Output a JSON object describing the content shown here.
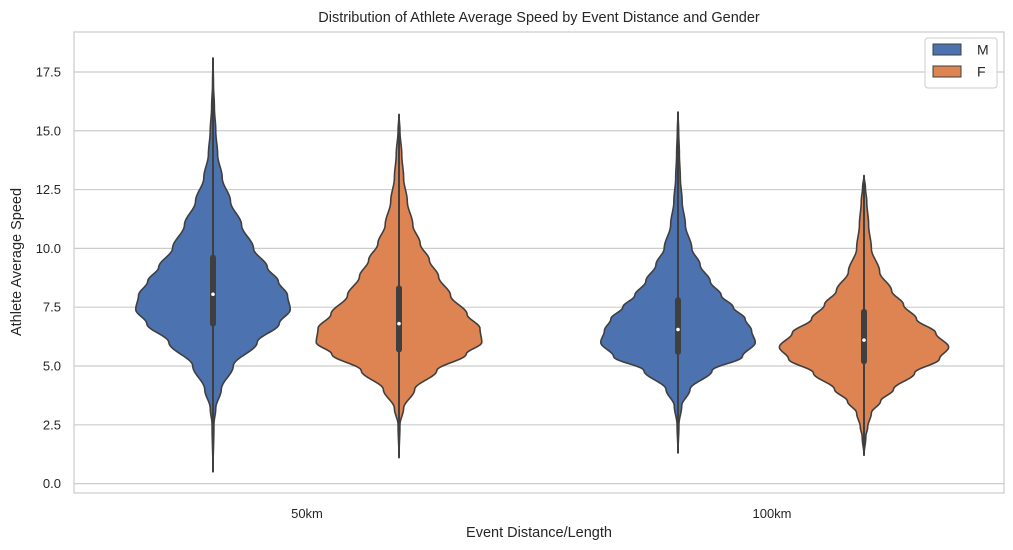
{
  "chart_data": {
    "type": "violin",
    "title": "Distribution of Athlete Average Speed by Event Distance and Gender",
    "xlabel": "Event Distance/Length",
    "ylabel": "Athlete Average Speed",
    "categories": [
      "50km",
      "100km"
    ],
    "ylim": [
      -0.4,
      19.2
    ],
    "yticks": [
      0.0,
      2.5,
      5.0,
      7.5,
      10.0,
      12.5,
      15.0,
      17.5
    ],
    "ytick_labels": [
      "0.0",
      "2.5",
      "5.0",
      "7.5",
      "10.0",
      "12.5",
      "15.0",
      "17.5"
    ],
    "grid": "horizontal",
    "legend": {
      "position": "top-right",
      "entries": [
        "M",
        "F"
      ]
    },
    "series": [
      {
        "name": "M",
        "color": "#4c72b0",
        "violins": [
          {
            "category": "50km",
            "min": 0.5,
            "q1": 6.8,
            "median": 8.05,
            "q3": 9.6,
            "max": 18.1,
            "profile": [
              [
                0.5,
                0.0
              ],
              [
                2.5,
                0.01
              ],
              [
                3.2,
                0.03
              ],
              [
                4.0,
                0.09
              ],
              [
                5.0,
                0.22
              ],
              [
                6.0,
                0.48
              ],
              [
                6.8,
                0.72
              ],
              [
                7.4,
                0.84
              ],
              [
                8.0,
                0.81
              ],
              [
                8.6,
                0.71
              ],
              [
                9.2,
                0.59
              ],
              [
                10.0,
                0.44
              ],
              [
                11.0,
                0.31
              ],
              [
                12.0,
                0.19
              ],
              [
                13.0,
                0.1
              ],
              [
                14.0,
                0.05
              ],
              [
                15.0,
                0.03
              ],
              [
                16.0,
                0.015
              ],
              [
                17.0,
                0.005
              ],
              [
                18.1,
                0.0
              ]
            ]
          },
          {
            "category": "100km",
            "min": 1.3,
            "q1": 5.6,
            "median": 6.55,
            "q3": 7.8,
            "max": 15.8,
            "profile": [
              [
                1.3,
                0.0
              ],
              [
                2.5,
                0.01
              ],
              [
                3.3,
                0.04
              ],
              [
                4.0,
                0.13
              ],
              [
                4.8,
                0.37
              ],
              [
                5.4,
                0.7
              ],
              [
                6.0,
                0.84
              ],
              [
                6.5,
                0.8
              ],
              [
                7.0,
                0.73
              ],
              [
                7.5,
                0.6
              ],
              [
                8.0,
                0.47
              ],
              [
                8.6,
                0.35
              ],
              [
                9.3,
                0.24
              ],
              [
                10.0,
                0.15
              ],
              [
                11.0,
                0.08
              ],
              [
                12.0,
                0.045
              ],
              [
                13.0,
                0.025
              ],
              [
                14.0,
                0.015
              ],
              [
                15.0,
                0.007
              ],
              [
                15.8,
                0.0
              ]
            ]
          }
        ]
      },
      {
        "name": "F",
        "color": "#dd8452",
        "violins": [
          {
            "category": "50km",
            "min": 1.1,
            "q1": 5.7,
            "median": 6.8,
            "q3": 8.3,
            "max": 15.7,
            "profile": [
              [
                1.1,
                0.0
              ],
              [
                2.5,
                0.01
              ],
              [
                3.2,
                0.05
              ],
              [
                4.0,
                0.17
              ],
              [
                4.8,
                0.41
              ],
              [
                5.5,
                0.73
              ],
              [
                6.0,
                0.9
              ],
              [
                6.6,
                0.88
              ],
              [
                7.2,
                0.74
              ],
              [
                8.0,
                0.56
              ],
              [
                8.8,
                0.43
              ],
              [
                9.5,
                0.33
              ],
              [
                10.2,
                0.23
              ],
              [
                11.0,
                0.15
              ],
              [
                12.0,
                0.09
              ],
              [
                13.0,
                0.05
              ],
              [
                14.0,
                0.03
              ],
              [
                15.0,
                0.01
              ],
              [
                15.7,
                0.0
              ]
            ]
          },
          {
            "category": "100km",
            "min": 1.2,
            "q1": 5.2,
            "median": 6.1,
            "q3": 7.3,
            "max": 13.1,
            "profile": [
              [
                1.2,
                0.0
              ],
              [
                2.0,
                0.02
              ],
              [
                2.4,
                0.04
              ],
              [
                3.0,
                0.08
              ],
              [
                3.5,
                0.18
              ],
              [
                4.0,
                0.32
              ],
              [
                4.7,
                0.55
              ],
              [
                5.3,
                0.82
              ],
              [
                5.8,
                0.92
              ],
              [
                6.4,
                0.78
              ],
              [
                7.0,
                0.57
              ],
              [
                7.6,
                0.43
              ],
              [
                8.2,
                0.3
              ],
              [
                9.0,
                0.17
              ],
              [
                10.0,
                0.08
              ],
              [
                11.0,
                0.05
              ],
              [
                12.0,
                0.03
              ],
              [
                12.6,
                0.015
              ],
              [
                13.1,
                0.0
              ]
            ]
          }
        ]
      }
    ]
  }
}
